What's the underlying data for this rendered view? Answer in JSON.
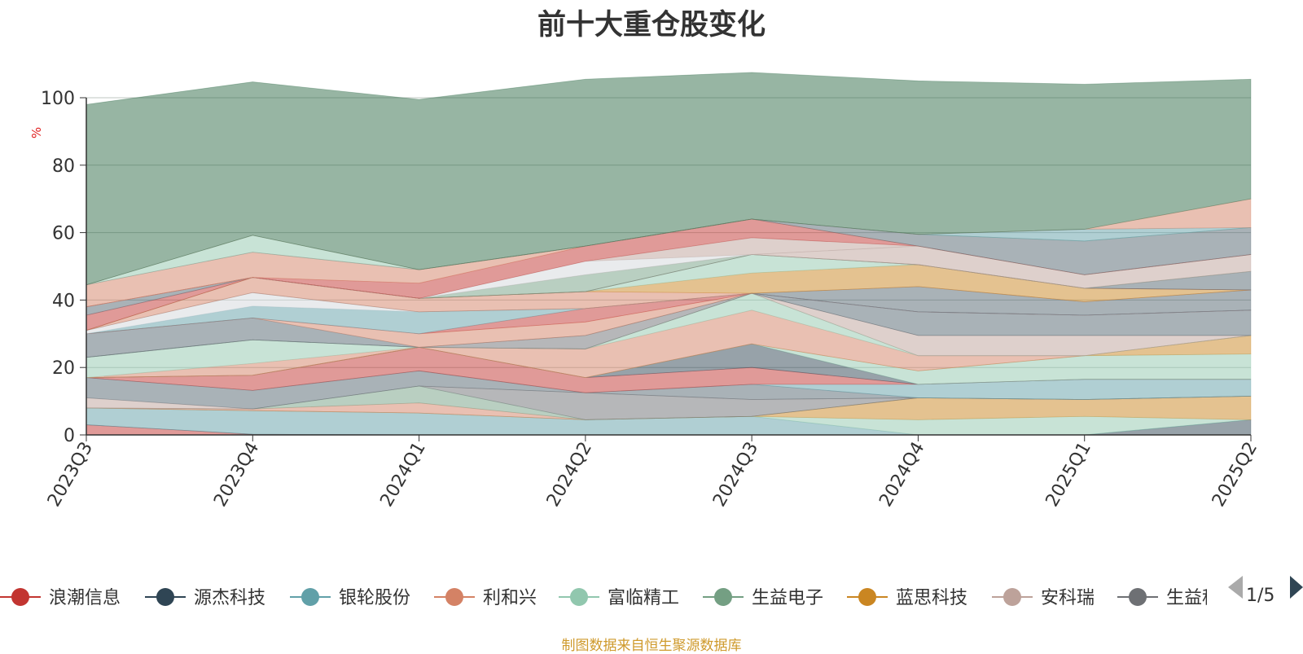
{
  "chart_data": {
    "type": "area",
    "title": "前十大重仓股变化",
    "ylabel": "%",
    "ylim": [
      0,
      100
    ],
    "y_ticks": [
      "0",
      "20",
      "40",
      "60",
      "80",
      "100"
    ],
    "categories": [
      "2023Q3",
      "2023Q4",
      "2024Q1",
      "2024Q2",
      "2024Q3",
      "2024Q4",
      "2025Q1",
      "2025Q2"
    ],
    "stacked": true,
    "grid": true,
    "legend_position": "bottom",
    "series": [
      {
        "color": "#c23531",
        "values": [
          3.0,
          0.2,
          0.0,
          0.0,
          0.0,
          0.0,
          0.0,
          0.0
        ]
      },
      {
        "color": "#2f4554",
        "values": [
          0.0,
          0.0,
          0.0,
          0.0,
          0.0,
          0.0,
          0.0,
          4.5
        ]
      },
      {
        "color": "#61a0a8",
        "values": [
          5.0,
          7.0,
          6.5,
          4.5,
          5.5,
          0.0,
          0.0,
          0.0
        ]
      },
      {
        "color": "#91c7ae",
        "values": [
          0.0,
          0.0,
          0.0,
          0.0,
          0.0,
          4.5,
          5.5,
          0.0
        ]
      },
      {
        "color": "#ca8622",
        "values": [
          0.0,
          0.0,
          0.0,
          0.0,
          0.0,
          6.5,
          5.0,
          7.0
        ]
      },
      {
        "color": "#d48265",
        "values": [
          0.0,
          0.5,
          3.0,
          0.0,
          0.0,
          0.0,
          0.0,
          0.0
        ]
      },
      {
        "color": "#749f83",
        "values": [
          0.0,
          0.0,
          5.0,
          0.0,
          0.0,
          0.0,
          0.0,
          0.0
        ]
      },
      {
        "color": "#6e7074",
        "values": [
          0.0,
          0.0,
          0.0,
          8.0,
          5.0,
          0.0,
          0.0,
          0.0
        ]
      },
      {
        "color": "#bda29a",
        "values": [
          3.0,
          0.0,
          0.0,
          0.0,
          0.0,
          0.0,
          0.0,
          0.0
        ]
      },
      {
        "color": "#546570",
        "values": [
          6.0,
          5.5,
          4.5,
          0.0,
          4.5,
          0.0,
          0.0,
          0.0
        ]
      },
      {
        "color": "#61a0a8",
        "values": [
          0.0,
          0.0,
          0.0,
          0.0,
          0.0,
          4.0,
          6.0,
          5.0
        ]
      },
      {
        "color": "#c23531",
        "values": [
          0.0,
          4.5,
          7.0,
          4.5,
          5.0,
          0.0,
          0.0,
          0.0
        ]
      },
      {
        "color": "#2f4554",
        "values": [
          0.0,
          0.0,
          0.0,
          0.0,
          7.0,
          0.0,
          0.0,
          0.0
        ]
      },
      {
        "color": "#91c7ae",
        "values": [
          0.0,
          0.0,
          0.0,
          0.0,
          0.0,
          4.0,
          7.0,
          7.5
        ]
      },
      {
        "color": "#ca8622",
        "values": [
          0.0,
          0.0,
          0.0,
          0.0,
          0.0,
          0.0,
          0.0,
          5.5
        ]
      },
      {
        "color": "#d48265",
        "values": [
          0.0,
          3.5,
          0.0,
          8.5,
          10.0,
          4.5,
          0.0,
          0.0
        ]
      },
      {
        "color": "#91c7ae",
        "values": [
          6.0,
          7.0,
          0.0,
          0.0,
          5.0,
          0.0,
          0.0,
          0.0
        ]
      },
      {
        "color": "#749f83",
        "values": [
          0.0,
          0.0,
          0.0,
          0.0,
          0.0,
          0.0,
          0.0,
          0.0
        ]
      },
      {
        "color": "#bda29a",
        "values": [
          0.0,
          0.0,
          0.0,
          0.0,
          0.0,
          6.0,
          6.0,
          0.0
        ]
      },
      {
        "color": "#6e7074",
        "values": [
          0.0,
          0.0,
          0.0,
          4.0,
          0.0,
          0.0,
          0.0,
          0.0
        ]
      },
      {
        "color": "#546570",
        "values": [
          7.0,
          6.5,
          0.0,
          0.0,
          0.0,
          7.0,
          6.0,
          7.5
        ]
      },
      {
        "color": "#d48265",
        "values": [
          0.0,
          0.0,
          4.0,
          4.0,
          0.0,
          0.0,
          0.0,
          0.0
        ]
      },
      {
        "color": "#c23531",
        "values": [
          0.0,
          0.0,
          0.0,
          4.0,
          0.0,
          0.0,
          0.0,
          0.0
        ]
      },
      {
        "color": "#61a0a8",
        "values": [
          0.0,
          3.5,
          6.5,
          0.0,
          0.0,
          0.0,
          0.0,
          0.0
        ]
      },
      {
        "color": "#d3d7dc",
        "values": [
          1.0,
          4.0,
          0.0,
          0.0,
          0.0,
          0.0,
          0.0,
          0.0
        ]
      },
      {
        "color": "#546570",
        "values": [
          0.0,
          0.0,
          0.0,
          0.0,
          0.0,
          7.5,
          4.0,
          6.0
        ]
      },
      {
        "color": "#d48265",
        "values": [
          0.0,
          4.5,
          4.0,
          5.0,
          0.0,
          0.0,
          0.0,
          0.0
        ]
      },
      {
        "color": "#ca8622",
        "values": [
          0.0,
          0.0,
          0.0,
          0.0,
          6.0,
          6.5,
          4.0,
          0.0
        ]
      },
      {
        "color": "#91c7ae",
        "values": [
          0.0,
          0.0,
          0.0,
          0.0,
          5.5,
          0.0,
          0.0,
          0.0
        ]
      },
      {
        "color": "#c23531",
        "values": [
          4.5,
          0.0,
          0.0,
          0.0,
          0.0,
          0.0,
          0.0,
          0.0
        ]
      },
      {
        "color": "#546570",
        "values": [
          2.5,
          0.0,
          0.0,
          0.0,
          0.0,
          0.0,
          0.0,
          5.5
        ]
      },
      {
        "color": "#749f83",
        "values": [
          0.0,
          0.0,
          0.0,
          5.0,
          0.0,
          0.0,
          0.0,
          0.0
        ]
      },
      {
        "color": "#bda29a",
        "values": [
          0.0,
          0.0,
          0.0,
          0.0,
          0.0,
          5.5,
          4.0,
          5.0
        ]
      },
      {
        "color": "#d3d7dc",
        "values": [
          0.0,
          0.0,
          0.0,
          4.0,
          0.0,
          0.0,
          0.0,
          0.0
        ]
      },
      {
        "color": "#bda29a",
        "values": [
          0.0,
          0.0,
          0.0,
          0.0,
          5.0,
          0.0,
          0.0,
          0.0
        ]
      },
      {
        "color": "#c23531",
        "values": [
          0.0,
          0.0,
          4.5,
          4.5,
          5.5,
          0.0,
          0.0,
          0.0
        ]
      },
      {
        "color": "#d48265",
        "values": [
          6.5,
          7.5,
          4.0,
          0.0,
          0.0,
          0.0,
          0.0,
          0.0
        ]
      },
      {
        "color": "#546570",
        "values": [
          0.0,
          0.0,
          0.0,
          0.0,
          0.0,
          3.5,
          10.0,
          8.0
        ]
      },
      {
        "color": "#91c7ae",
        "values": [
          0.0,
          5.0,
          0.0,
          0.0,
          0.0,
          0.0,
          0.0,
          0.0
        ]
      },
      {
        "color": "#61a0a8",
        "values": [
          0.0,
          0.0,
          0.0,
          0.0,
          0.0,
          0.0,
          3.5,
          0.0
        ]
      },
      {
        "color": "#d48265",
        "values": [
          0.0,
          0.0,
          0.0,
          0.0,
          0.0,
          0.0,
          0.0,
          8.5
        ]
      },
      {
        "color": "#2f6b48",
        "values": [
          53.5,
          45.5,
          50.5,
          49.5,
          43.5,
          45.5,
          43.0,
          35.5
        ]
      }
    ],
    "legend": [
      {
        "name": "浪潮信息",
        "color": "#c23531"
      },
      {
        "name": "源杰科技",
        "color": "#2f4554"
      },
      {
        "name": "银轮股份",
        "color": "#61a0a8"
      },
      {
        "name": "利和兴",
        "color": "#d48265"
      },
      {
        "name": "富临精工",
        "color": "#91c7ae"
      },
      {
        "name": "生益电子",
        "color": "#749f83"
      },
      {
        "name": "蓝思科技",
        "color": "#ca8622"
      },
      {
        "name": "安科瑞",
        "color": "#bda29a"
      },
      {
        "name": "生益科技",
        "color": "#6e7074"
      }
    ],
    "legend_page": "1/5",
    "source_note": "制图数据来自恒生聚源数据库"
  }
}
